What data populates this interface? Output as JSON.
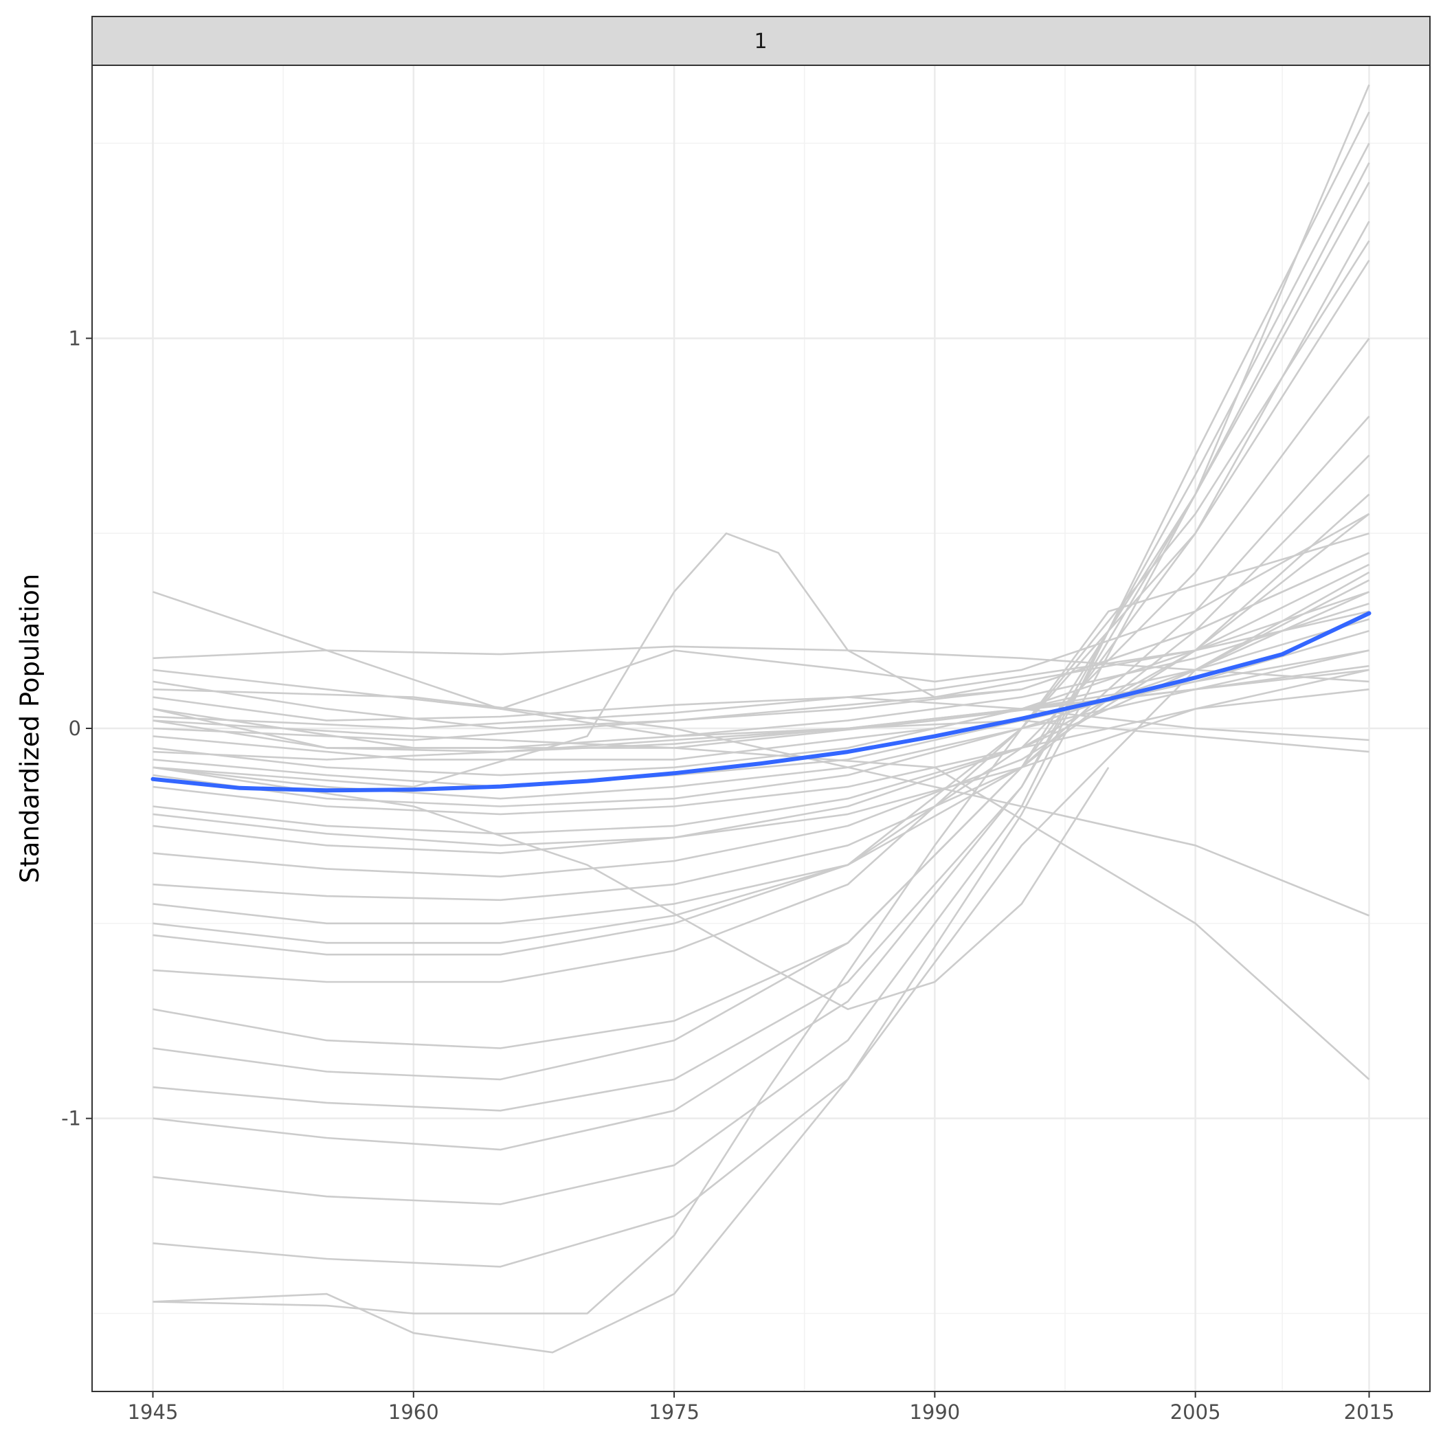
{
  "chart_data": {
    "type": "line",
    "title": "",
    "facet_label": "1",
    "xlabel": "",
    "ylabel": "Standardized Population",
    "x_ticks": [
      1945,
      1960,
      1975,
      1990,
      2005,
      2015
    ],
    "y_ticks": [
      1,
      0,
      -1
    ],
    "x_tick_labels": [
      "1945",
      "1960",
      "1975",
      "1990",
      "2005",
      "2015"
    ],
    "y_tick_labels": [
      "1",
      "0",
      "-1"
    ],
    "xlim": [
      1941.5,
      2018.5
    ],
    "ylim": [
      -1.7,
      1.7
    ],
    "grid": true,
    "colors": {
      "individual_series": "#cccccc",
      "trend": "#3366ff",
      "strip_fill": "#d9d9d9"
    },
    "trend_line": {
      "name": "",
      "x": [
        1945,
        1950,
        1955,
        1960,
        1965,
        1970,
        1975,
        1980,
        1985,
        1990,
        1995,
        2000,
        2005,
        2010,
        2015
      ],
      "y": [
        -0.13,
        -0.153,
        -0.159,
        -0.157,
        -0.149,
        -0.135,
        -0.115,
        -0.09,
        -0.06,
        -0.02,
        0.025,
        0.075,
        0.13,
        0.19,
        0.295
      ]
    },
    "series": [
      {
        "x": [
          1945,
          1955,
          1965,
          1975,
          1985,
          1995,
          2005,
          2015
        ],
        "y": [
          0.35,
          0.2,
          0.05,
          -0.02,
          0.0,
          0.05,
          0.12,
          0.2
        ]
      },
      {
        "x": [
          1945,
          1955,
          1965,
          1975,
          1985,
          1995,
          2005,
          2015
        ],
        "y": [
          0.18,
          0.2,
          0.19,
          0.21,
          0.2,
          0.18,
          0.15,
          0.12
        ]
      },
      {
        "x": [
          1945,
          1960,
          1970,
          1975,
          1978,
          1981,
          1985,
          1990,
          1995,
          2005,
          2015
        ],
        "y": [
          -0.1,
          -0.15,
          -0.02,
          0.35,
          0.5,
          0.45,
          0.2,
          0.08,
          0.1,
          0.25,
          0.45
        ]
      },
      {
        "x": [
          1945,
          1955,
          1965,
          1975,
          1985,
          1990,
          1995,
          2005,
          2015
        ],
        "y": [
          0.15,
          0.1,
          0.05,
          0.2,
          0.15,
          0.12,
          0.15,
          0.3,
          0.55
        ]
      },
      {
        "x": [
          1945,
          1955,
          1965,
          1975,
          1985,
          1995,
          2005,
          2015
        ],
        "y": [
          0.12,
          0.05,
          0.0,
          0.02,
          0.05,
          0.1,
          0.25,
          0.45
        ]
      },
      {
        "x": [
          1945,
          1955,
          1965,
          1975,
          1985,
          1995,
          2005,
          2015
        ],
        "y": [
          0.08,
          0.02,
          0.03,
          0.06,
          0.08,
          0.05,
          0.0,
          -0.03
        ]
      },
      {
        "x": [
          1945,
          1955,
          1965,
          1975,
          1985,
          1995,
          2005,
          2015
        ],
        "y": [
          0.05,
          -0.05,
          -0.05,
          -0.02,
          0.02,
          0.08,
          0.18,
          0.32
        ]
      },
      {
        "x": [
          1945,
          1955,
          1965,
          1975,
          1985,
          1995,
          2005,
          2015
        ],
        "y": [
          0.02,
          -0.05,
          -0.06,
          -0.04,
          0.0,
          0.05,
          0.1,
          0.16
        ]
      },
      {
        "x": [
          1945,
          1955,
          1965,
          1975,
          1985,
          1995,
          2005,
          2015
        ],
        "y": [
          -0.05,
          -0.1,
          -0.12,
          -0.1,
          -0.05,
          0.05,
          0.2,
          0.35
        ]
      },
      {
        "x": [
          1945,
          1955,
          1965,
          1975,
          1985,
          1995,
          2005,
          2015
        ],
        "y": [
          -0.1,
          -0.15,
          -0.18,
          -0.15,
          -0.1,
          0.0,
          0.15,
          0.38
        ]
      },
      {
        "x": [
          1945,
          1955,
          1965,
          1975,
          1985,
          1995,
          2005,
          2015
        ],
        "y": [
          -0.12,
          -0.18,
          -0.2,
          -0.18,
          -0.12,
          0.0,
          0.1,
          0.15
        ]
      },
      {
        "x": [
          1945,
          1955,
          1965,
          1975,
          1985,
          1995,
          2005,
          2015
        ],
        "y": [
          -0.15,
          -0.2,
          -0.22,
          -0.2,
          -0.15,
          -0.05,
          0.05,
          0.1
        ]
      },
      {
        "x": [
          1945,
          1955,
          1965,
          1975,
          1985,
          1995,
          2005,
          2015
        ],
        "y": [
          -0.2,
          -0.25,
          -0.27,
          -0.25,
          -0.18,
          -0.05,
          0.15,
          0.4
        ]
      },
      {
        "x": [
          1945,
          1955,
          1965,
          1975,
          1985,
          1995,
          2005,
          2015
        ],
        "y": [
          -0.25,
          -0.3,
          -0.32,
          -0.28,
          -0.2,
          -0.05,
          0.2,
          0.55
        ]
      },
      {
        "x": [
          1945,
          1955,
          1965,
          1975,
          1985,
          1995,
          2005,
          2015
        ],
        "y": [
          -0.32,
          -0.36,
          -0.38,
          -0.34,
          -0.25,
          -0.08,
          0.2,
          0.6
        ]
      },
      {
        "x": [
          1945,
          1955,
          1965,
          1975,
          1985,
          1995,
          2005,
          2015
        ],
        "y": [
          -0.4,
          -0.43,
          -0.44,
          -0.4,
          -0.3,
          -0.1,
          0.25,
          0.7
        ]
      },
      {
        "x": [
          1945,
          1955,
          1965,
          1975,
          1985,
          1995,
          2005,
          2015
        ],
        "y": [
          -0.45,
          -0.5,
          -0.5,
          -0.45,
          -0.35,
          -0.1,
          0.3,
          0.8
        ]
      },
      {
        "x": [
          1945,
          1955,
          1965,
          1975,
          1985,
          1995,
          2005,
          2015
        ],
        "y": [
          -0.5,
          -0.55,
          -0.55,
          -0.48,
          -0.35,
          -0.05,
          0.4,
          1.0
        ]
      },
      {
        "x": [
          1945,
          1955,
          1965,
          1975,
          1985,
          1995,
          2005,
          2015
        ],
        "y": [
          -0.53,
          -0.58,
          -0.58,
          -0.5,
          -0.35,
          0.0,
          0.5,
          1.2
        ]
      },
      {
        "x": [
          1945,
          1955,
          1965,
          1975,
          1985,
          1995,
          2005,
          2015
        ],
        "y": [
          -0.62,
          -0.65,
          -0.65,
          -0.57,
          -0.4,
          0.0,
          0.55,
          1.25
        ]
      },
      {
        "x": [
          1945,
          1955,
          1965,
          1975,
          1985,
          1995,
          2005,
          2015
        ],
        "y": [
          -0.72,
          -0.8,
          -0.82,
          -0.75,
          -0.55,
          -0.1,
          0.5,
          1.3
        ]
      },
      {
        "x": [
          1945,
          1955,
          1965,
          1975,
          1985,
          1995,
          2005,
          2015
        ],
        "y": [
          -0.82,
          -0.88,
          -0.9,
          -0.8,
          -0.55,
          -0.1,
          0.6,
          1.4
        ]
      },
      {
        "x": [
          1945,
          1955,
          1965,
          1975,
          1985,
          1995,
          2005,
          2015
        ],
        "y": [
          -0.92,
          -0.96,
          -0.98,
          -0.9,
          -0.65,
          -0.15,
          0.6,
          1.45
        ]
      },
      {
        "x": [
          1945,
          1955,
          1965,
          1975,
          1985,
          1995,
          2005,
          2015
        ],
        "y": [
          -1.0,
          -1.05,
          -1.08,
          -0.98,
          -0.7,
          -0.15,
          0.65,
          1.5
        ]
      },
      {
        "x": [
          1945,
          1955,
          1965,
          1975,
          1985,
          1995,
          2005,
          2015
        ],
        "y": [
          -1.15,
          -1.2,
          -1.22,
          -1.12,
          -0.8,
          -0.2,
          0.7,
          1.58
        ]
      },
      {
        "x": [
          1945,
          1955,
          1965,
          1975,
          1985,
          1995,
          2005,
          2015
        ],
        "y": [
          -1.32,
          -1.36,
          -1.38,
          -1.25,
          -0.9,
          -0.22,
          0.6,
          1.65
        ]
      },
      {
        "x": [
          1945,
          1955,
          1960,
          1970,
          1975,
          1980,
          1990,
          2000,
          2015
        ],
        "y": [
          -1.47,
          -1.48,
          -1.5,
          -1.5,
          -1.3,
          -0.95,
          -0.3,
          0.3,
          0.5
        ]
      },
      {
        "x": [
          1945,
          1955,
          1960,
          1968,
          1975,
          1985,
          1995,
          2005,
          2015
        ],
        "y": [
          -1.47,
          -1.45,
          -1.55,
          -1.6,
          -1.45,
          -0.9,
          -0.3,
          0.15,
          0.35
        ]
      },
      {
        "x": [
          1945,
          1955,
          1965,
          1975,
          1985,
          1995,
          2005,
          2015
        ],
        "y": [
          -0.22,
          -0.27,
          -0.3,
          -0.28,
          -0.22,
          -0.1,
          0.05,
          0.15
        ]
      },
      {
        "x": [
          1945,
          1955,
          1965,
          1975,
          1985,
          1995,
          2005,
          2015
        ],
        "y": [
          -0.08,
          -0.12,
          -0.15,
          -0.12,
          -0.08,
          0.02,
          0.12,
          0.25
        ]
      },
      {
        "x": [
          1945,
          1955,
          1965,
          1975,
          1985,
          1995,
          2005,
          2015
        ],
        "y": [
          -0.06,
          -0.08,
          -0.06,
          -0.03,
          0.0,
          0.02,
          -0.02,
          -0.06
        ]
      },
      {
        "x": [
          1945,
          1960,
          1970,
          1980,
          1985,
          1990,
          1995,
          2000
        ],
        "y": [
          -0.1,
          -0.2,
          -0.35,
          -0.6,
          -0.72,
          -0.65,
          -0.45,
          -0.1
        ]
      },
      {
        "x": [
          1945,
          1960,
          1975,
          1990,
          2005,
          2015
        ],
        "y": [
          0.1,
          0.08,
          0.0,
          -0.15,
          -0.3,
          -0.48
        ]
      },
      {
        "x": [
          1945,
          1960,
          1975,
          1990,
          2005,
          2015
        ],
        "y": [
          0.02,
          -0.02,
          -0.05,
          -0.1,
          -0.5,
          -0.9
        ]
      },
      {
        "x": [
          1945,
          1960,
          1975,
          1990,
          2005,
          2015
        ],
        "y": [
          0.05,
          -0.05,
          -0.05,
          0.02,
          0.1,
          0.2
        ]
      },
      {
        "x": [
          1945,
          1960,
          1975,
          1990,
          2005,
          2015
        ],
        "y": [
          -0.02,
          -0.08,
          -0.08,
          0.0,
          0.15,
          0.28
        ]
      },
      {
        "x": [
          1945,
          1960,
          1975,
          1990,
          2005,
          2015
        ],
        "y": [
          0.0,
          -0.03,
          0.02,
          0.08,
          0.2,
          0.42
        ]
      },
      {
        "x": [
          1945,
          1960,
          1975,
          1990,
          2005,
          2015
        ],
        "y": [
          0.03,
          0.0,
          0.04,
          0.1,
          0.2,
          0.3
        ]
      }
    ]
  }
}
